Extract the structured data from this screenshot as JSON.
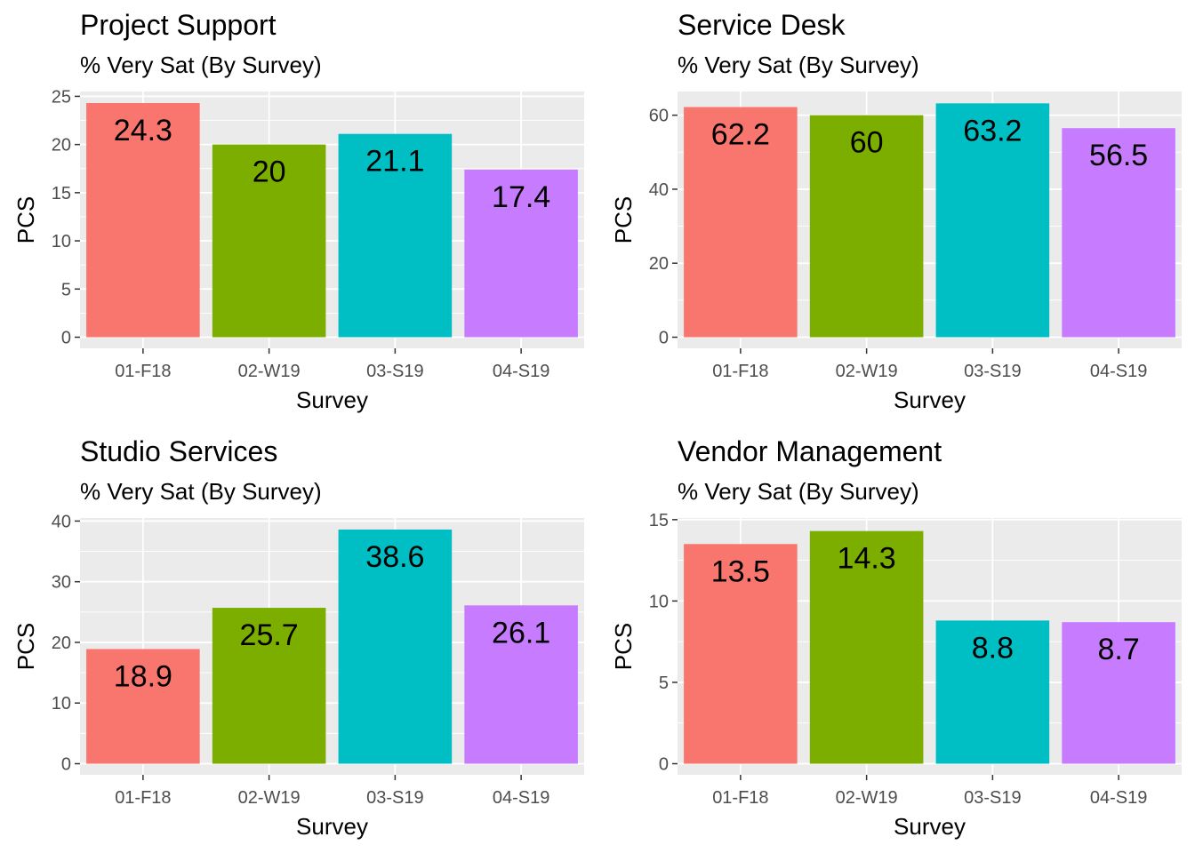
{
  "chart_data": [
    {
      "type": "bar",
      "title": "Project Support",
      "subtitle": "% Very Sat (By Survey)",
      "xlabel": "Survey",
      "ylabel": "PCS",
      "categories": [
        "01-F18",
        "02-W19",
        "03-S19",
        "04-S19"
      ],
      "values": [
        24.3,
        20,
        21.1,
        17.4
      ],
      "value_labels": [
        "24.3",
        "20",
        "21.1",
        "17.4"
      ],
      "yticks": [
        "0",
        "5",
        "10",
        "15",
        "20",
        "25"
      ],
      "ytick_values": [
        0,
        5,
        10,
        15,
        20,
        25
      ],
      "ylim": [
        0,
        25.5
      ],
      "grid": true,
      "legend": "none"
    },
    {
      "type": "bar",
      "title": "Service Desk",
      "subtitle": "% Very Sat (By Survey)",
      "xlabel": "Survey",
      "ylabel": "PCS",
      "categories": [
        "01-F18",
        "02-W19",
        "03-S19",
        "04-S19"
      ],
      "values": [
        62.2,
        60,
        63.2,
        56.5
      ],
      "value_labels": [
        "62.2",
        "60",
        "63.2",
        "56.5"
      ],
      "yticks": [
        "0",
        "20",
        "40",
        "60"
      ],
      "ytick_values": [
        0,
        20,
        40,
        60
      ],
      "ylim": [
        0,
        66.4
      ],
      "grid": true,
      "legend": "none"
    },
    {
      "type": "bar",
      "title": "Studio Services",
      "subtitle": "% Very Sat (By Survey)",
      "xlabel": "Survey",
      "ylabel": "PCS",
      "categories": [
        "01-F18",
        "02-W19",
        "03-S19",
        "04-S19"
      ],
      "values": [
        18.9,
        25.7,
        38.6,
        26.1
      ],
      "value_labels": [
        "18.9",
        "25.7",
        "38.6",
        "26.1"
      ],
      "yticks": [
        "0",
        "10",
        "20",
        "30",
        "40"
      ],
      "ytick_values": [
        0,
        10,
        20,
        30,
        40
      ],
      "ylim": [
        0,
        40.5
      ],
      "grid": true,
      "legend": "none"
    },
    {
      "type": "bar",
      "title": "Vendor Management",
      "subtitle": "% Very Sat (By Survey)",
      "xlabel": "Survey",
      "ylabel": "PCS",
      "categories": [
        "01-F18",
        "02-W19",
        "03-S19",
        "04-S19"
      ],
      "values": [
        13.5,
        14.3,
        8.8,
        8.7
      ],
      "value_labels": [
        "13.5",
        "14.3",
        "8.8",
        "8.7"
      ],
      "yticks": [
        "0",
        "5",
        "10",
        "15"
      ],
      "ytick_values": [
        0,
        5,
        10,
        15
      ],
      "ylim": [
        0,
        15.1
      ],
      "grid": true,
      "legend": "none"
    }
  ],
  "colors": {
    "bars": [
      "#F8766D",
      "#7CAE00",
      "#00BFC4",
      "#C77CFF"
    ],
    "panel_bg": "#EBEBEB",
    "grid": "#FFFFFF",
    "axis_text": "#4D4D4D"
  }
}
